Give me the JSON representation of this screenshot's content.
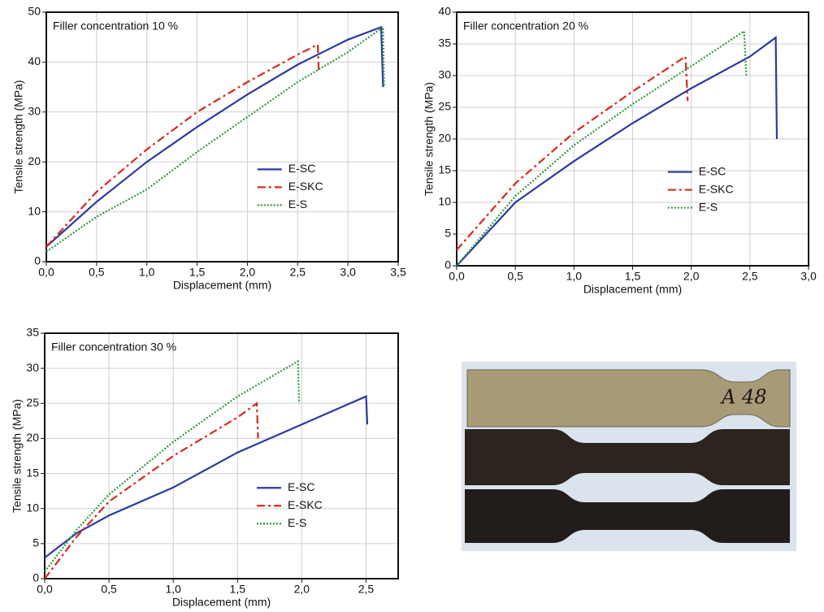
{
  "chart_data": [
    {
      "type": "line",
      "annotation": "Filler concentration 10 %",
      "x_label": "Displacement (mm)",
      "y_label": "Tensile strength (MPa)",
      "xlim": [
        0,
        3.5
      ],
      "ylim": [
        0,
        50
      ],
      "grid": true,
      "legend": "center-right",
      "xticks": [
        {
          "value": 0,
          "label": "0,0"
        },
        {
          "value": 0.5,
          "label": "0,5"
        },
        {
          "value": 1,
          "label": "1,0"
        },
        {
          "value": 1.5,
          "label": "1,5"
        },
        {
          "value": 2,
          "label": "2,0"
        },
        {
          "value": 2.5,
          "label": "2,5"
        },
        {
          "value": 3,
          "label": "3,0"
        },
        {
          "value": 3.5,
          "label": "3,5"
        }
      ],
      "yticks": [
        0,
        10,
        20,
        30,
        40,
        50
      ],
      "series": [
        {
          "name": "E-SC",
          "color": "#2b3a9e",
          "dash": "solid",
          "x": [
            0,
            0.5,
            1,
            1.5,
            2,
            2.5,
            3,
            3.33,
            3.35
          ],
          "values": [
            3,
            12,
            20,
            27,
            33.5,
            39.5,
            44.5,
            47,
            35
          ]
        },
        {
          "name": "E-SKC",
          "color": "#d42a20",
          "dash": "dashdot",
          "x": [
            0,
            0.5,
            1,
            1.5,
            2,
            2.5,
            2.7,
            2.71
          ],
          "values": [
            3,
            14,
            22.5,
            30,
            36,
            41.5,
            43.5,
            38
          ]
        },
        {
          "name": "E-S",
          "color": "#2e9a3a",
          "dash": "dotted",
          "x": [
            0,
            0.5,
            1,
            1.5,
            2,
            2.5,
            3,
            3.35,
            3.36
          ],
          "values": [
            2,
            9,
            14.5,
            22,
            29,
            36,
            42,
            47,
            35
          ]
        }
      ]
    },
    {
      "type": "line",
      "annotation": "Filler concentration 20 %",
      "x_label": "Displacement (mm)",
      "y_label": "Tensile strength (MPa)",
      "xlim": [
        0,
        3
      ],
      "ylim": [
        0,
        40
      ],
      "grid": true,
      "legend": "center-right",
      "xticks": [
        {
          "value": 0,
          "label": "0,0"
        },
        {
          "value": 0.5,
          "label": "0,5"
        },
        {
          "value": 1,
          "label": "1,0"
        },
        {
          "value": 1.5,
          "label": "1,5"
        },
        {
          "value": 2,
          "label": "2,0"
        },
        {
          "value": 2.5,
          "label": "2,5"
        },
        {
          "value": 3,
          "label": "3,0"
        }
      ],
      "yticks": [
        0,
        5,
        10,
        15,
        20,
        25,
        30,
        35,
        40
      ],
      "series": [
        {
          "name": "E-SC",
          "color": "#2b3a9e",
          "dash": "solid",
          "x": [
            0,
            0.5,
            1,
            1.5,
            2,
            2.5,
            2.72,
            2.73
          ],
          "values": [
            0,
            10,
            16.5,
            22.5,
            28,
            33,
            36,
            20
          ]
        },
        {
          "name": "E-SKC",
          "color": "#d42a20",
          "dash": "dashdot",
          "x": [
            0,
            0.5,
            1,
            1.5,
            1.95,
            1.97
          ],
          "values": [
            2.5,
            13,
            21,
            27.5,
            33,
            26
          ]
        },
        {
          "name": "E-S",
          "color": "#2e9a3a",
          "dash": "dotted",
          "x": [
            0,
            0.5,
            1,
            1.5,
            2,
            2.45,
            2.47
          ],
          "values": [
            0,
            11,
            19,
            25.5,
            31.5,
            37,
            30
          ]
        }
      ]
    },
    {
      "type": "line",
      "annotation": "Filler concentration 30 %",
      "x_label": "Displacement (mm)",
      "y_label": "Tensile strength (MPa)",
      "xlim": [
        0,
        2.75
      ],
      "ylim": [
        0,
        35
      ],
      "grid": true,
      "legend": "center-right",
      "xticks": [
        {
          "value": 0,
          "label": "0,0"
        },
        {
          "value": 0.5,
          "label": "0,5"
        },
        {
          "value": 1,
          "label": "1,0"
        },
        {
          "value": 1.5,
          "label": "1,5"
        },
        {
          "value": 2,
          "label": "2,0"
        },
        {
          "value": 2.5,
          "label": "2,5"
        }
      ],
      "yticks": [
        0,
        5,
        10,
        15,
        20,
        25,
        30,
        35
      ],
      "series": [
        {
          "name": "E-SC",
          "color": "#2b3a9e",
          "dash": "solid",
          "x": [
            0,
            0.25,
            0.5,
            1,
            1.5,
            2,
            2.5,
            2.51
          ],
          "values": [
            3,
            6.5,
            9,
            13,
            18,
            22,
            26,
            22
          ]
        },
        {
          "name": "E-SKC",
          "color": "#d42a20",
          "dash": "dashdot",
          "x": [
            0,
            0.25,
            0.5,
            1,
            1.5,
            1.65,
            1.66
          ],
          "values": [
            0,
            6,
            11,
            17.5,
            23,
            25,
            20
          ]
        },
        {
          "name": "E-S",
          "color": "#2e9a3a",
          "dash": "dotted",
          "x": [
            0,
            0.25,
            0.5,
            1,
            1.5,
            1.97,
            1.98
          ],
          "values": [
            1,
            7,
            12,
            19.5,
            26,
            31,
            25
          ]
        }
      ]
    }
  ],
  "specimen_label": "A 48"
}
